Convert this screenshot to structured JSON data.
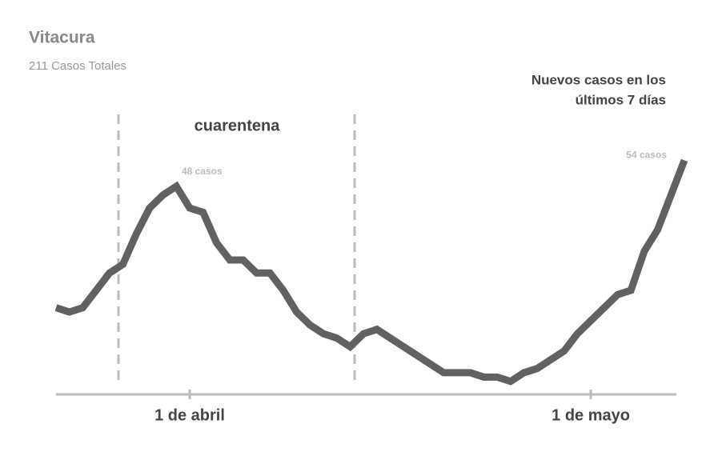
{
  "chart_data": {
    "type": "line",
    "title": "Vitacura",
    "subtitle": "211 Casos Totales",
    "note": [
      "Nuevos casos en los",
      "últimos 7 días"
    ],
    "annotation": "cuarentena",
    "categories": [
      null,
      null,
      null,
      null,
      null,
      null,
      null,
      null,
      null,
      null,
      "1 de abril",
      null,
      null,
      null,
      null,
      null,
      null,
      null,
      null,
      null,
      null,
      null,
      null,
      null,
      null,
      null,
      null,
      null,
      null,
      null,
      null,
      null,
      null,
      null,
      null,
      null,
      null,
      null,
      null,
      null,
      "1 de mayo",
      null,
      null,
      null,
      null,
      null,
      null,
      null
    ],
    "values": [
      20,
      19,
      20,
      24,
      28,
      30,
      37,
      43,
      46,
      48,
      43,
      42,
      35,
      31,
      31,
      28,
      28,
      24,
      19,
      16,
      14,
      13,
      11,
      14,
      15,
      13,
      11,
      9,
      7,
      5,
      5,
      5,
      4,
      4,
      3,
      5,
      6,
      8,
      10,
      14,
      17,
      20,
      23,
      24,
      33,
      38,
      46,
      54
    ],
    "value_labels": [
      null,
      null,
      null,
      null,
      null,
      null,
      null,
      null,
      null,
      "48 casos",
      null,
      null,
      null,
      null,
      null,
      null,
      null,
      null,
      null,
      null,
      null,
      null,
      null,
      null,
      null,
      null,
      null,
      null,
      null,
      null,
      null,
      null,
      null,
      null,
      null,
      null,
      null,
      null,
      null,
      null,
      null,
      null,
      null,
      null,
      null,
      null,
      null,
      "54 casos"
    ],
    "color": "#616161",
    "ylim": [
      0,
      55
    ]
  }
}
